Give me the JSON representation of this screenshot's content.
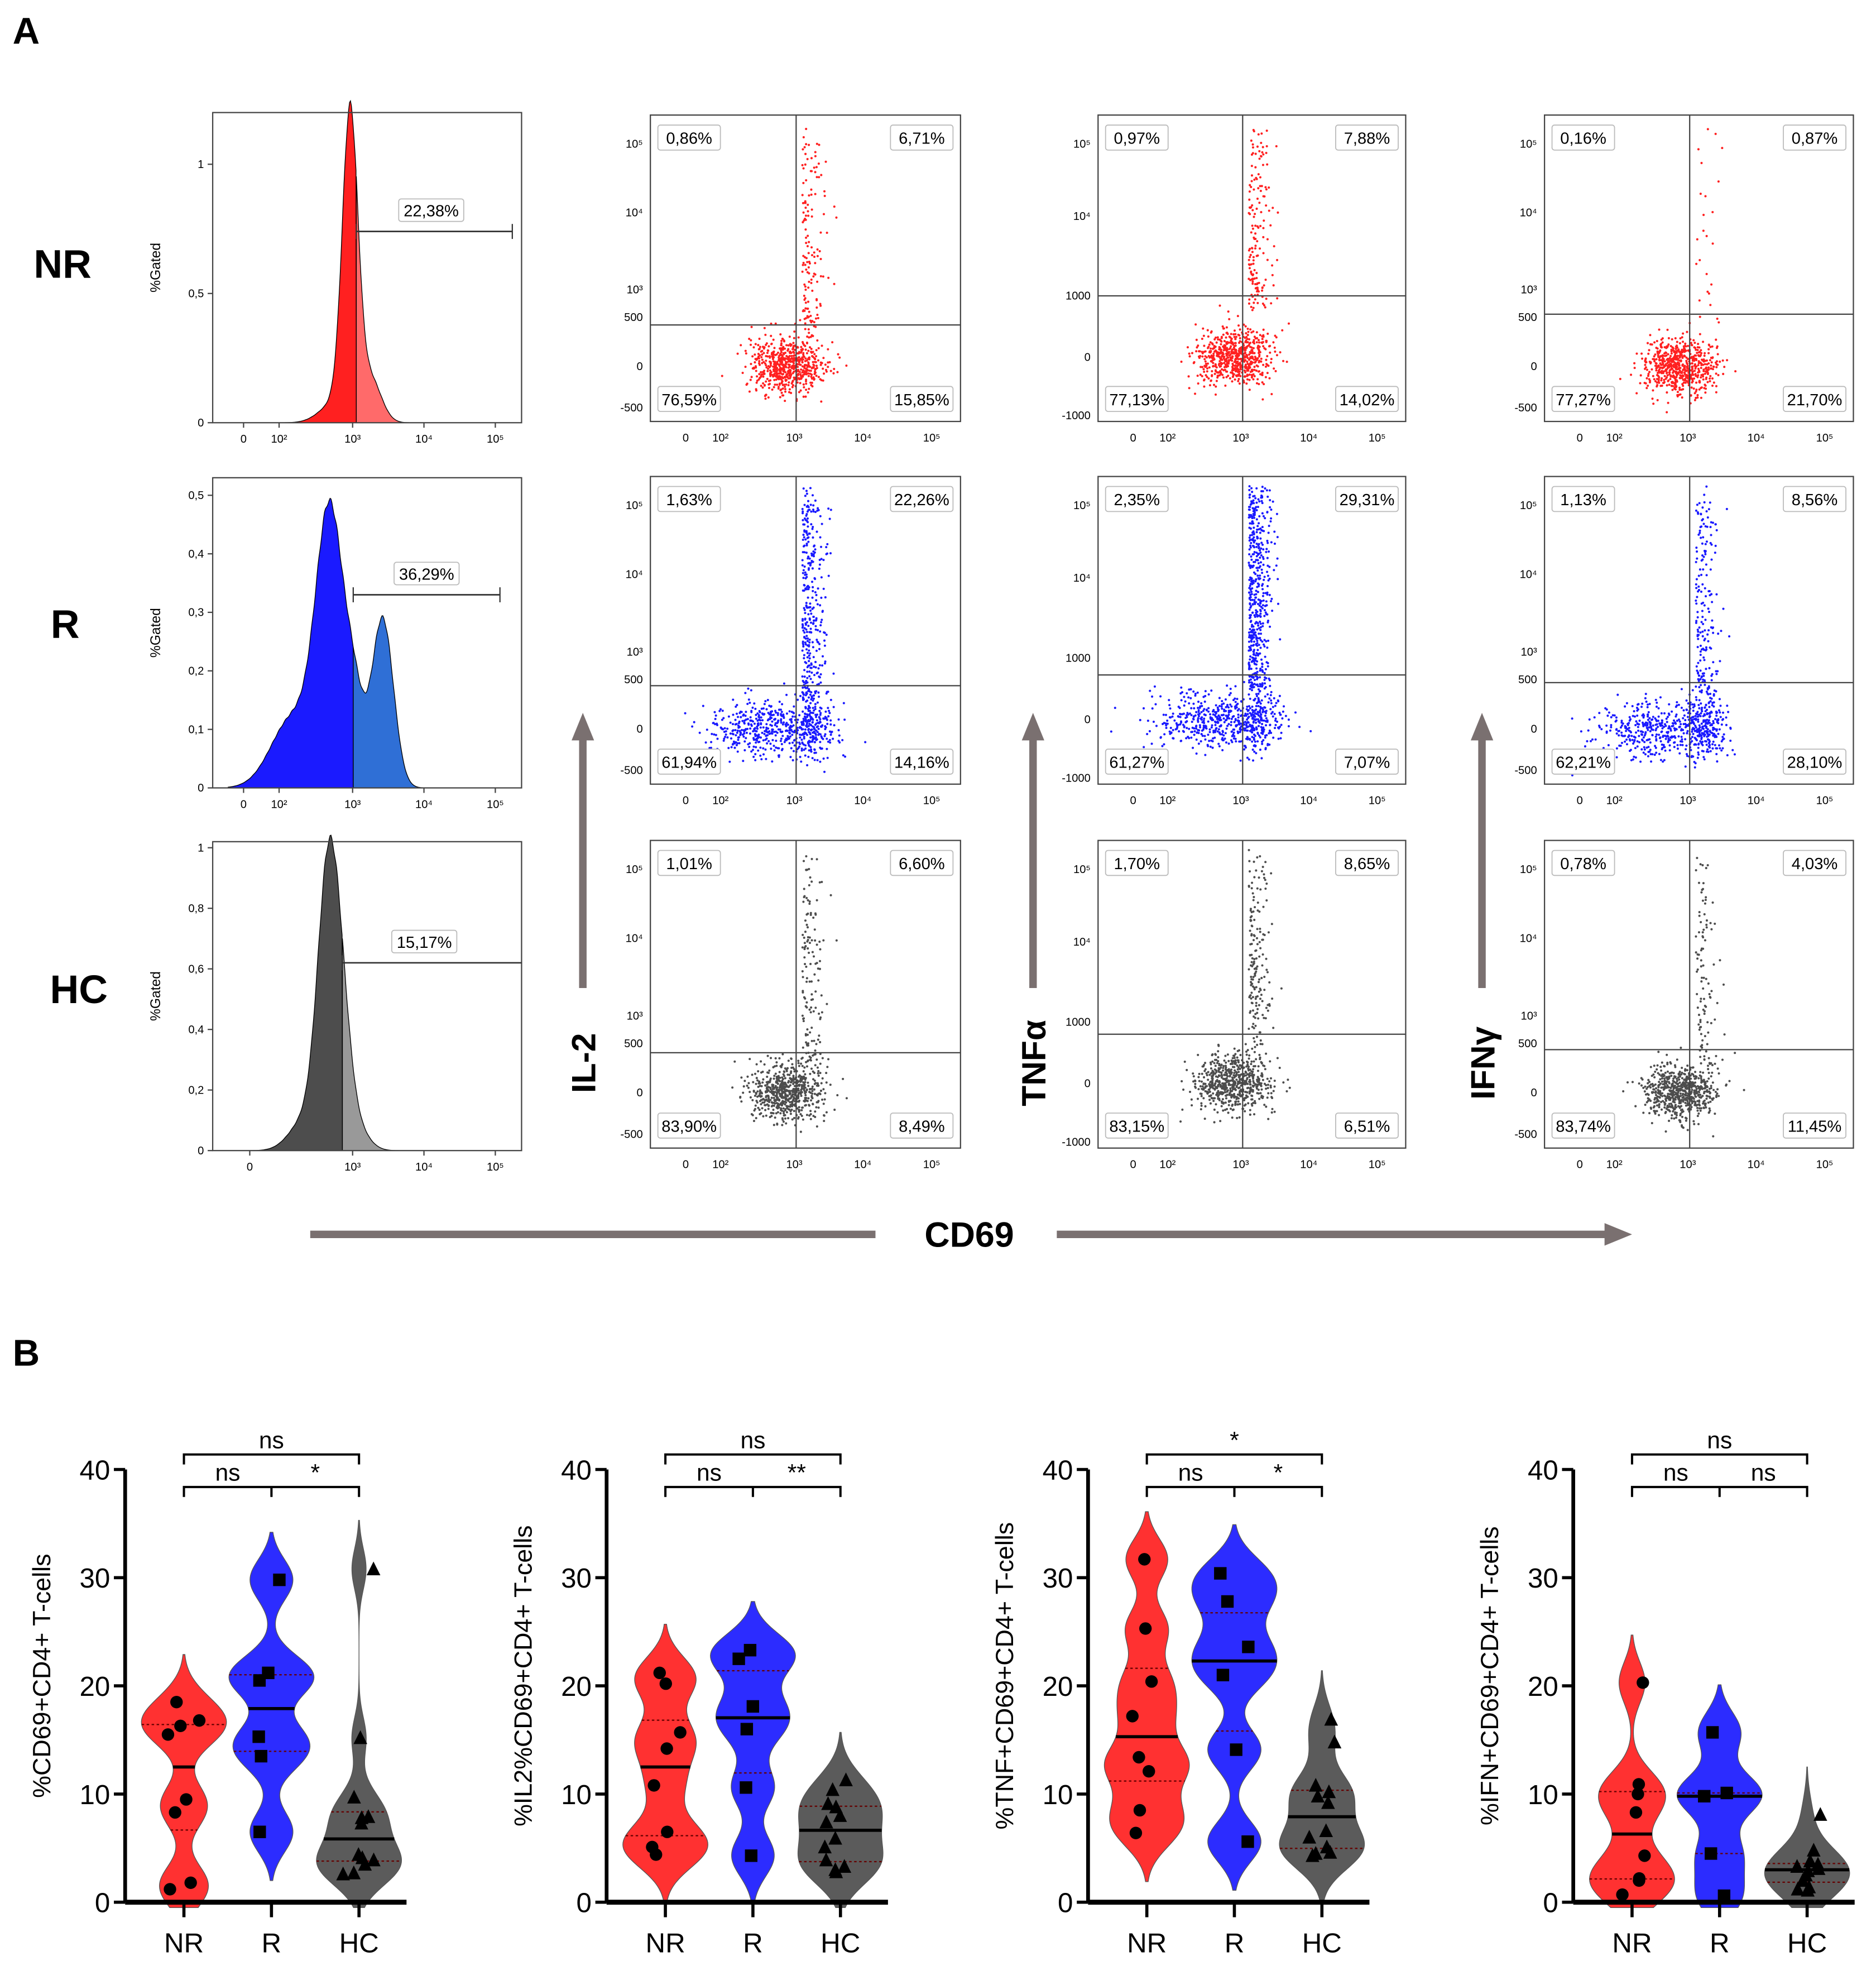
{
  "panel_labels": {
    "a": "A",
    "b": "B"
  },
  "colors": {
    "NR": "#ff2020",
    "R": "#1a1aff",
    "HC": "#4d4d4d",
    "NR_light": "#ff6a6a",
    "R_light": "#2f6fd6",
    "HC_light": "#999999",
    "arrow": "#7a7070"
  },
  "panel_a": {
    "row_labels": [
      "NR",
      "R",
      "HC"
    ],
    "x_axis_label": "CD69",
    "histograms": [
      {
        "group": "NR",
        "y_label": "%Gated",
        "y_ticks": [
          "0",
          "0,5",
          "1"
        ],
        "x_ticks": [
          "0",
          "10²",
          "10³",
          "10⁴",
          "10⁵"
        ],
        "gate_label": "22,38%"
      },
      {
        "group": "R",
        "y_label": "%Gated",
        "y_ticks": [
          "0",
          "0,1",
          "0,2",
          "0,3",
          "0,4",
          "0,5"
        ],
        "x_ticks": [
          "0",
          "10²",
          "10³",
          "10⁴",
          "10⁵"
        ],
        "gate_label": "36,29%"
      },
      {
        "group": "HC",
        "y_label": "%Gated",
        "y_ticks": [
          "0",
          "0,2",
          "0,4",
          "0,6",
          "0,8",
          "1"
        ],
        "x_ticks": [
          "0",
          "10³",
          "10⁴",
          "10⁵"
        ],
        "gate_label": "15,17%"
      }
    ],
    "dotplot_columns": [
      {
        "marker": "IL-2",
        "y_ticks": [
          "-500",
          "0",
          "500",
          "10³",
          "10⁴",
          "10⁵"
        ],
        "x_ticks": [
          "0",
          "10²",
          "10³",
          "10⁴",
          "10⁵"
        ],
        "plots": [
          {
            "group": "NR",
            "upper_left": "0,86%",
            "upper_right": "6,71%",
            "lower_left": "76,59%",
            "lower_right": "15,85%"
          },
          {
            "group": "R",
            "upper_left": "1,63%",
            "upper_right": "22,26%",
            "lower_left": "61,94%",
            "lower_right": "14,16%"
          },
          {
            "group": "HC",
            "upper_left": "1,01%",
            "upper_right": "6,60%",
            "lower_left": "83,90%",
            "lower_right": "8,49%"
          }
        ]
      },
      {
        "marker": "TNFα",
        "y_ticks": [
          "-1000",
          "0",
          "1000",
          "10⁴",
          "10⁵"
        ],
        "x_ticks": [
          "0",
          "10²",
          "10³",
          "10⁴",
          "10⁵"
        ],
        "plots": [
          {
            "group": "NR",
            "upper_left": "0,97%",
            "upper_right": "7,88%",
            "lower_left": "77,13%",
            "lower_right": "14,02%"
          },
          {
            "group": "R",
            "upper_left": "2,35%",
            "upper_right": "29,31%",
            "lower_left": "61,27%",
            "lower_right": "7,07%"
          },
          {
            "group": "HC",
            "upper_left": "1,70%",
            "upper_right": "8,65%",
            "lower_left": "83,15%",
            "lower_right": "6,51%"
          }
        ]
      },
      {
        "marker": "IFNγ",
        "y_ticks": [
          "-500",
          "0",
          "500",
          "10³",
          "10⁴",
          "10⁵"
        ],
        "x_ticks": [
          "0",
          "10²",
          "10³",
          "10⁴",
          "10⁵"
        ],
        "plots": [
          {
            "group": "NR",
            "upper_left": "0,16%",
            "upper_right": "0,87%",
            "lower_left": "77,27%",
            "lower_right": "21,70%"
          },
          {
            "group": "R",
            "upper_left": "1,13%",
            "upper_right": "8,56%",
            "lower_left": "62,21%",
            "lower_right": "28,10%"
          },
          {
            "group": "HC",
            "upper_left": "0,78%",
            "upper_right": "4,03%",
            "lower_left": "83,74%",
            "lower_right": "11,45%"
          }
        ]
      }
    ]
  },
  "chart_data": [
    {
      "type": "violin",
      "ylabel": "%CD69+CD4+ T-cells",
      "ylim": [
        0,
        40
      ],
      "y_ticks": [
        "0",
        "10",
        "20",
        "30",
        "40"
      ],
      "categories": [
        "NR",
        "R",
        "HC"
      ],
      "series": [
        {
          "name": "NR",
          "marker": "circle",
          "values": [
            18.5,
            16.8,
            16.3,
            15.5,
            9.5,
            8.3,
            1.8,
            1.2
          ]
        },
        {
          "name": "R",
          "marker": "square",
          "values": [
            29.8,
            21.2,
            20.5,
            15.3,
            13.5,
            6.5
          ]
        },
        {
          "name": "HC",
          "marker": "triangle",
          "values": [
            30.8,
            15.2,
            9.7,
            7.9,
            7.8,
            7.3,
            4.4,
            4.1,
            3.9,
            3.5,
            2.7,
            2.6
          ]
        }
      ],
      "significance": {
        "NR_vs_HC": "ns",
        "NR_vs_R": "ns",
        "R_vs_HC": "*"
      }
    },
    {
      "type": "violin",
      "ylabel": "%IL2%CD69+CD4+ T-cells",
      "ylim": [
        0,
        40
      ],
      "y_ticks": [
        "0",
        "10",
        "20",
        "30",
        "40"
      ],
      "categories": [
        "NR",
        "R",
        "HC"
      ],
      "series": [
        {
          "name": "NR",
          "marker": "circle",
          "values": [
            21.2,
            20.2,
            15.7,
            14.2,
            10.8,
            6.5,
            5.1,
            4.4
          ]
        },
        {
          "name": "R",
          "marker": "square",
          "values": [
            23.3,
            22.5,
            18.1,
            16.0,
            10.6,
            4.3
          ]
        },
        {
          "name": "HC",
          "marker": "triangle",
          "values": [
            11.3,
            10.4,
            9.1,
            8.8,
            8.0,
            7.4,
            5.9,
            5.1,
            3.9,
            3.3,
            3.0,
            2.8
          ]
        }
      ],
      "significance": {
        "NR_vs_HC": "ns",
        "NR_vs_R": "ns",
        "R_vs_HC": "**"
      }
    },
    {
      "type": "violin",
      "ylabel": "%TNF+CD69+CD4+ T-cells",
      "ylim": [
        0,
        40
      ],
      "y_ticks": [
        "0",
        "10",
        "20",
        "30",
        "40"
      ],
      "categories": [
        "NR",
        "R",
        "HC"
      ],
      "series": [
        {
          "name": "NR",
          "marker": "circle",
          "values": [
            31.7,
            25.3,
            20.4,
            17.2,
            13.4,
            12.1,
            8.5,
            6.4
          ]
        },
        {
          "name": "R",
          "marker": "square",
          "values": [
            30.4,
            27.8,
            23.6,
            21.0,
            14.1,
            5.6
          ]
        },
        {
          "name": "HC",
          "marker": "triangle",
          "values": [
            16.9,
            14.8,
            10.8,
            10.2,
            9.8,
            9.2,
            6.6,
            6.0,
            5.1,
            4.6,
            4.5,
            4.3
          ]
        }
      ],
      "significance": {
        "NR_vs_HC": "*",
        "NR_vs_R": "ns",
        "R_vs_HC": "*"
      }
    },
    {
      "type": "violin",
      "ylabel": "%IFN+CD69+CD4+ T-cells",
      "ylim": [
        0,
        40
      ],
      "y_ticks": [
        "0",
        "10",
        "20",
        "30",
        "40"
      ],
      "categories": [
        "NR",
        "R",
        "HC"
      ],
      "series": [
        {
          "name": "NR",
          "marker": "circle",
          "values": [
            20.3,
            10.9,
            10.0,
            8.3,
            4.3,
            2.2,
            2.0,
            0.7
          ]
        },
        {
          "name": "R",
          "marker": "square",
          "values": [
            15.7,
            10.1,
            9.8,
            4.5,
            0.6
          ]
        },
        {
          "name": "HC",
          "marker": "triangle",
          "values": [
            8.1,
            4.8,
            3.8,
            3.5,
            3.3,
            3.1,
            2.9,
            2.5,
            2.0,
            1.4,
            1.2,
            1.1
          ]
        }
      ],
      "significance": {
        "NR_vs_HC": "ns",
        "NR_vs_R": "ns",
        "R_vs_HC": "ns"
      }
    }
  ]
}
